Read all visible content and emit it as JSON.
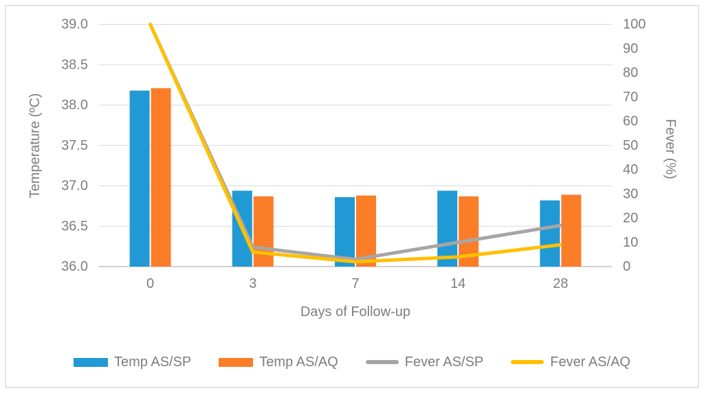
{
  "styles": {
    "text_color": "#7d7d7d",
    "gridline_color": "#d9d9d9",
    "baseline_color": "#c0c0c0",
    "figure_border_color": "#e2e2e2",
    "background": "#ffffff"
  },
  "chart_data": {
    "type": "combo-bar-line",
    "categories": [
      "0",
      "3",
      "7",
      "14",
      "28"
    ],
    "xlabel": "Days of Follow-up",
    "left_axis": {
      "label": "Temperature (ºC)",
      "min": 36.0,
      "max": 39.0,
      "step": 0.5,
      "decimals": 1
    },
    "right_axis": {
      "label": "Fever (%)",
      "min": 0,
      "max": 100,
      "step": 10,
      "decimals": 0
    },
    "grid": true,
    "legend_position": "bottom",
    "series": [
      {
        "name": "Temp AS/SP",
        "type": "bar",
        "axis": "left",
        "color": "#2199d5",
        "values": [
          38.18,
          36.94,
          36.86,
          36.94,
          36.82
        ]
      },
      {
        "name": "Temp AS/AQ",
        "type": "bar",
        "axis": "left",
        "color": "#fb7d28",
        "values": [
          38.21,
          36.87,
          36.88,
          36.87,
          36.89
        ]
      },
      {
        "name": "Fever AS/SP",
        "type": "line",
        "axis": "right",
        "color": "#a6a6a6",
        "values": [
          100,
          8,
          3,
          10,
          17
        ]
      },
      {
        "name": "Fever AS/AQ",
        "type": "line",
        "axis": "right",
        "color": "#ffc000",
        "values": [
          100,
          6,
          2,
          4,
          9
        ]
      }
    ]
  }
}
